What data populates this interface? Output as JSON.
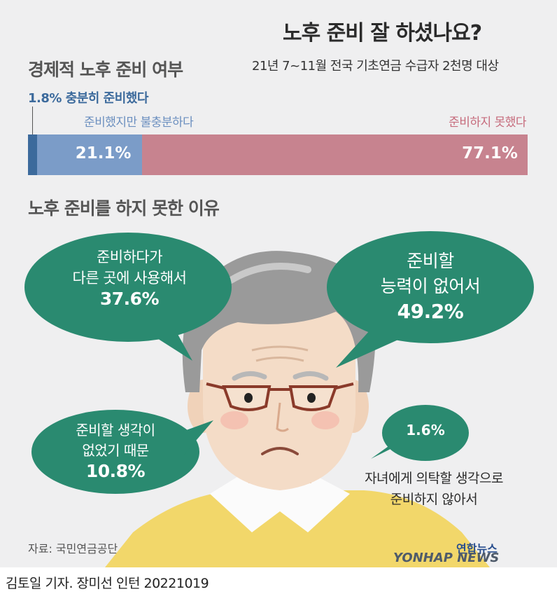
{
  "header": {
    "title": "노후 준비 잘 하셨나요?",
    "subtitle": "21년 7~11월 전국 기초연금 수급자 2천명 대상"
  },
  "section1": {
    "title": "경제적 노후 준비 여부",
    "labels": {
      "sufficient": "1.8% 충분히 준비했다",
      "insufficient": "준비했지만 불충분하다",
      "not_prepared": "준비하지 못했다"
    },
    "value_labels": {
      "insufficient": "21.1%",
      "not_prepared": "77.1%"
    }
  },
  "section2": {
    "title": "노후 준비를 하지 못한 이유",
    "bubbles": {
      "used_elsewhere": {
        "line1": "준비하다가",
        "line2": "다른 곳에 사용해서",
        "value": "37.6%"
      },
      "no_ability": {
        "line1": "준비할",
        "line2": "능력이 없어서",
        "value": "49.2%"
      },
      "no_thought": {
        "line1": "준비할 생각이",
        "line2": "없었기 때문",
        "value": "10.8%"
      },
      "rely_children": {
        "value": "1.6%",
        "line1": "자녀에게 의탁할 생각으로",
        "line2": "준비하지 않아서"
      }
    }
  },
  "footer": {
    "source": "자료: 국민연금공단",
    "logo_kr": "연합뉴스",
    "logo_en": "YONHAP NEWS",
    "credit": "김토일 기자. 장미선 인턴 20221019"
  },
  "colors": {
    "background": "#efeff0",
    "sufficient": "#3c6a9c",
    "insufficient": "#7b9cc8",
    "not_prepared": "#c7838f",
    "bubble_green": "#2a8a70",
    "hair": "#9a9a9a",
    "skin": "#f4dcc7",
    "sweater": "#f2d76a"
  },
  "chart_data": [
    {
      "type": "bar",
      "title": "경제적 노후 준비 여부",
      "categories": [
        "충분히 준비했다",
        "준비했지만 불충분하다",
        "준비하지 못했다"
      ],
      "values": [
        1.8,
        21.1,
        77.1
      ],
      "unit": "%"
    },
    {
      "type": "bar",
      "title": "노후 준비를 하지 못한 이유",
      "categories": [
        "준비할 능력이 없어서",
        "준비하다가 다른 곳에 사용해서",
        "준비할 생각이 없었기 때문",
        "자녀에게 의탁할 생각으로 준비하지 않아서"
      ],
      "values": [
        49.2,
        37.6,
        10.8,
        1.6
      ],
      "unit": "%"
    }
  ]
}
